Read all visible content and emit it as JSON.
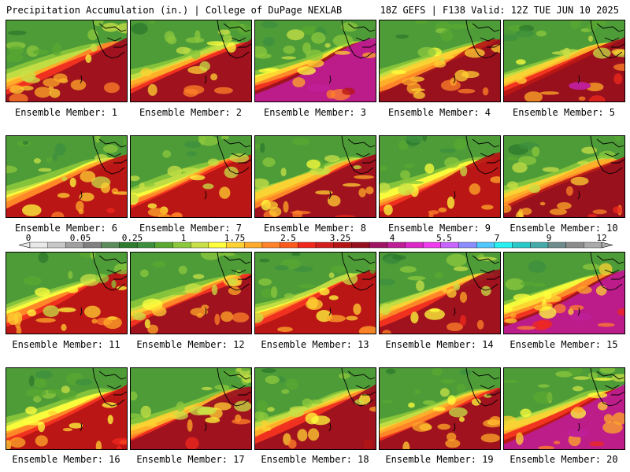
{
  "header": {
    "title_left": "Precipitation Accumulation (in.) | College of DuPage NEXLAB",
    "title_right": "18Z GEFS | F138 Valid: 12Z TUE JUN 10 2025"
  },
  "panels": [
    {
      "label": "Ensemble Member: 1",
      "seed": 11,
      "intensity": 0.55
    },
    {
      "label": "Ensemble Member: 2",
      "seed": 23,
      "intensity": 0.5
    },
    {
      "label": "Ensemble Member: 3",
      "seed": 37,
      "intensity": 0.8
    },
    {
      "label": "Ensemble Member: 4",
      "seed": 41,
      "intensity": 0.6
    },
    {
      "label": "Ensemble Member: 5",
      "seed": 53,
      "intensity": 0.65
    },
    {
      "label": "Ensemble Member: 6",
      "seed": 67,
      "intensity": 0.45
    },
    {
      "label": "Ensemble Member: 7",
      "seed": 71,
      "intensity": 0.45
    },
    {
      "label": "Ensemble Member: 8",
      "seed": 89,
      "intensity": 0.5
    },
    {
      "label": "Ensemble Member: 9",
      "seed": 97,
      "intensity": 0.45
    },
    {
      "label": "Ensemble Member: 10",
      "seed": 103,
      "intensity": 0.6
    },
    {
      "label": "Ensemble Member: 11",
      "seed": 113,
      "intensity": 0.45
    },
    {
      "label": "Ensemble Member: 12",
      "seed": 127,
      "intensity": 0.55
    },
    {
      "label": "Ensemble Member: 13",
      "seed": 131,
      "intensity": 0.45
    },
    {
      "label": "Ensemble Member: 14",
      "seed": 149,
      "intensity": 0.55
    },
    {
      "label": "Ensemble Member: 15",
      "seed": 157,
      "intensity": 0.8
    },
    {
      "label": "Ensemble Member: 16",
      "seed": 163,
      "intensity": 0.45
    },
    {
      "label": "Ensemble Member: 17",
      "seed": 173,
      "intensity": 0.5
    },
    {
      "label": "Ensemble Member: 18",
      "seed": 181,
      "intensity": 0.55
    },
    {
      "label": "Ensemble Member: 19",
      "seed": 191,
      "intensity": 0.55
    },
    {
      "label": "Ensemble Member: 20",
      "seed": 199,
      "intensity": 0.7
    }
  ],
  "colorbar": {
    "labels": [
      "0",
      "0.05",
      "0.25",
      "1",
      "1.75",
      "2.5",
      "3.25",
      "4",
      "5.5",
      "7",
      "9",
      "12"
    ],
    "colors": [
      "#e8e8e8",
      "#c8c8c8",
      "#a0a0a0",
      "#808080",
      "#5c8c5c",
      "#2e7a2e",
      "#3d8f3d",
      "#5aa832",
      "#8cc83c",
      "#c8e046",
      "#ffff3c",
      "#ffd232",
      "#ffaa28",
      "#ff8228",
      "#ff5a1e",
      "#f0281e",
      "#d21e1e",
      "#b41414",
      "#960f1e",
      "#a01464",
      "#be1e96",
      "#dc28c8",
      "#f03cf0",
      "#c864ff",
      "#8c8cff",
      "#50c8ff",
      "#28f0f0",
      "#28c8c8",
      "#46aaaa",
      "#6e8c8c",
      "#8c8c8c",
      "#aaaaaa"
    ]
  }
}
